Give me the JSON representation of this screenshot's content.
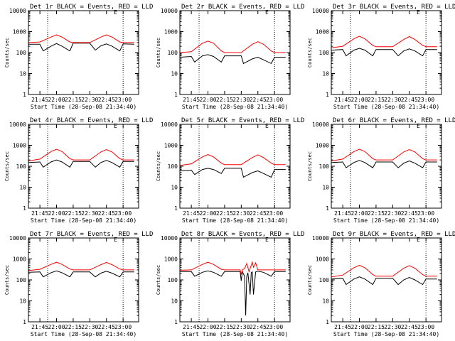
{
  "colors": {
    "events": "#000000",
    "lld": "#ff0000",
    "axes": "#000000",
    "background": "#ffffff"
  },
  "chart_data": [
    {
      "type": "line",
      "title": "Det 1r BLACK = Events, RED = LLD",
      "corner_mark": "E",
      "xlabel": "Start Time (28-Sep-08 21:34:40)",
      "ylabel": "Counts/sec",
      "y_scale": "log",
      "ylim": [
        1,
        10000
      ],
      "y_ticks": [
        "1",
        "10",
        "100",
        "1000",
        "10000"
      ],
      "xlim": [
        "21:34:40",
        "23:14:00"
      ],
      "x_ticks": [
        "21:45",
        "22:00",
        "22:15",
        "22:30",
        "22:45",
        "23:00"
      ],
      "vlines": [
        "21:52",
        "23:00"
      ],
      "series": [
        {
          "name": "Events",
          "color": "#000000",
          "x": [
            "21:35",
            "21:45",
            "21:48",
            "21:55",
            "22:00",
            "22:05",
            "22:12",
            "22:15",
            "22:30",
            "22:35",
            "22:40",
            "22:45",
            "22:50",
            "22:57",
            "23:00",
            "23:10"
          ],
          "values": [
            250,
            250,
            120,
            200,
            270,
            200,
            120,
            280,
            280,
            130,
            210,
            260,
            200,
            120,
            260,
            250
          ]
        },
        {
          "name": "LLD",
          "color": "#ff0000",
          "x": [
            "21:35",
            "21:45",
            "21:55",
            "22:00",
            "22:05",
            "22:12",
            "22:15",
            "22:30",
            "22:40",
            "22:45",
            "22:50",
            "22:57",
            "23:00",
            "23:10"
          ],
          "values": [
            300,
            320,
            550,
            700,
            550,
            320,
            300,
            300,
            550,
            700,
            550,
            320,
            300,
            300
          ]
        }
      ]
    },
    {
      "type": "line",
      "title": "Det 2r BLACK = Events, RED = LLD",
      "corner_mark": "E",
      "xlabel": "Start Time (28-Sep-08 21:34:40)",
      "ylabel": "Counts/sec",
      "y_scale": "log",
      "ylim": [
        1,
        10000
      ],
      "y_ticks": [
        "1",
        "10",
        "100",
        "1000",
        "10000"
      ],
      "xlim": [
        "21:34:40",
        "23:14:00"
      ],
      "x_ticks": [
        "21:45",
        "22:00",
        "22:15",
        "22:30",
        "22:45",
        "23:00"
      ],
      "vlines": [
        "21:52",
        "23:00"
      ],
      "series": [
        {
          "name": "Events",
          "color": "#000000",
          "x": [
            "21:35",
            "21:45",
            "21:48",
            "21:55",
            "22:00",
            "22:05",
            "22:12",
            "22:15",
            "22:30",
            "22:32",
            "22:40",
            "22:45",
            "22:50",
            "22:57",
            "23:00",
            "23:10"
          ],
          "values": [
            60,
            65,
            35,
            70,
            80,
            65,
            35,
            70,
            70,
            30,
            50,
            60,
            45,
            30,
            60,
            60
          ]
        },
        {
          "name": "LLD",
          "color": "#ff0000",
          "x": [
            "21:35",
            "21:45",
            "21:55",
            "22:00",
            "22:05",
            "22:12",
            "22:15",
            "22:30",
            "22:40",
            "22:45",
            "22:50",
            "22:57",
            "23:00",
            "23:10"
          ],
          "values": [
            100,
            110,
            280,
            350,
            280,
            120,
            100,
            100,
            250,
            330,
            250,
            120,
            100,
            100
          ]
        }
      ]
    },
    {
      "type": "line",
      "title": "Det 3r BLACK = Events, RED = LLD",
      "corner_mark": "E",
      "xlabel": "Start Time (28-Sep-08 21:34:40)",
      "ylabel": "Counts/sec",
      "y_scale": "log",
      "ylim": [
        1,
        10000
      ],
      "y_ticks": [
        "1",
        "10",
        "100",
        "1000",
        "10000"
      ],
      "xlim": [
        "21:34:40",
        "23:14:00"
      ],
      "x_ticks": [
        "21:45",
        "22:00",
        "22:15",
        "22:30",
        "22:45",
        "23:00"
      ],
      "vlines": [
        "21:52",
        "23:00"
      ],
      "series": [
        {
          "name": "Events",
          "color": "#000000",
          "x": [
            "21:35",
            "21:45",
            "21:48",
            "21:55",
            "22:00",
            "22:05",
            "22:12",
            "22:15",
            "22:30",
            "22:35",
            "22:40",
            "22:45",
            "22:50",
            "22:57",
            "23:00",
            "23:10"
          ],
          "values": [
            130,
            140,
            70,
            130,
            160,
            130,
            70,
            140,
            140,
            70,
            120,
            150,
            120,
            70,
            140,
            140
          ]
        },
        {
          "name": "LLD",
          "color": "#ff0000",
          "x": [
            "21:35",
            "21:45",
            "21:55",
            "22:00",
            "22:05",
            "22:12",
            "22:15",
            "22:30",
            "22:40",
            "22:45",
            "22:50",
            "22:57",
            "23:00",
            "23:10"
          ],
          "values": [
            170,
            200,
            450,
            600,
            450,
            220,
            190,
            190,
            420,
            580,
            420,
            220,
            190,
            190
          ]
        }
      ]
    },
    {
      "type": "line",
      "title": "Det 4r BLACK = Events, RED = LLD",
      "corner_mark": "E",
      "xlabel": "Start Time (28-Sep-08 21:34:40)",
      "ylabel": "Counts/sec",
      "y_scale": "log",
      "ylim": [
        1,
        10000
      ],
      "y_ticks": [
        "1",
        "10",
        "100",
        "1000",
        "10000"
      ],
      "xlim": [
        "21:34:40",
        "23:14:00"
      ],
      "x_ticks": [
        "21:45",
        "22:00",
        "22:15",
        "22:30",
        "22:45",
        "23:00"
      ],
      "vlines": [
        "21:52",
        "23:00"
      ],
      "series": [
        {
          "name": "Events",
          "color": "#000000",
          "x": [
            "21:35",
            "21:45",
            "21:48",
            "21:55",
            "22:00",
            "22:05",
            "22:12",
            "22:15",
            "22:30",
            "22:35",
            "22:40",
            "22:45",
            "22:50",
            "22:57",
            "23:00",
            "23:10"
          ],
          "values": [
            150,
            160,
            90,
            160,
            200,
            160,
            90,
            170,
            170,
            90,
            150,
            190,
            150,
            90,
            170,
            170
          ]
        },
        {
          "name": "LLD",
          "color": "#ff0000",
          "x": [
            "21:35",
            "21:45",
            "21:55",
            "22:00",
            "22:05",
            "22:12",
            "22:15",
            "22:30",
            "22:40",
            "22:45",
            "22:50",
            "22:57",
            "23:00",
            "23:10"
          ],
          "values": [
            180,
            220,
            500,
            650,
            500,
            230,
            200,
            200,
            480,
            620,
            480,
            230,
            200,
            200
          ]
        }
      ]
    },
    {
      "type": "line",
      "title": "Det 5r BLACK = Events, RED = LLD",
      "corner_mark": "E",
      "xlabel": "Start Time (28-Sep-08 21:34:40)",
      "ylabel": "Counts/sec",
      "y_scale": "log",
      "ylim": [
        1,
        10000
      ],
      "y_ticks": [
        "1",
        "10",
        "100",
        "1000",
        "10000"
      ],
      "xlim": [
        "21:34:40",
        "23:14:00"
      ],
      "x_ticks": [
        "21:45",
        "22:00",
        "22:15",
        "22:30",
        "22:45",
        "23:00"
      ],
      "vlines": [
        "21:52",
        "23:00"
      ],
      "series": [
        {
          "name": "Events",
          "color": "#000000",
          "x": [
            "21:35",
            "21:45",
            "21:48",
            "21:55",
            "22:00",
            "22:05",
            "22:12",
            "22:15",
            "22:30",
            "22:32",
            "22:40",
            "22:45",
            "22:50",
            "22:57",
            "23:00",
            "23:10"
          ],
          "values": [
            60,
            65,
            40,
            70,
            80,
            70,
            45,
            80,
            80,
            30,
            50,
            60,
            45,
            30,
            70,
            70
          ]
        },
        {
          "name": "LLD",
          "color": "#ff0000",
          "x": [
            "21:35",
            "21:45",
            "21:55",
            "22:00",
            "22:05",
            "22:12",
            "22:15",
            "22:30",
            "22:40",
            "22:45",
            "22:50",
            "22:57",
            "23:00",
            "23:10"
          ],
          "values": [
            110,
            130,
            280,
            360,
            280,
            140,
            120,
            120,
            260,
            350,
            260,
            140,
            120,
            120
          ]
        }
      ]
    },
    {
      "type": "line",
      "title": "Det 6r BLACK = Events, RED = LLD",
      "corner_mark": "E",
      "xlabel": "Start Time (28-Sep-08 21:34:40)",
      "ylabel": "Counts/sec",
      "y_scale": "log",
      "ylim": [
        1,
        10000
      ],
      "y_ticks": [
        "1",
        "10",
        "100",
        "1000",
        "10000"
      ],
      "xlim": [
        "21:34:40",
        "23:14:00"
      ],
      "x_ticks": [
        "21:45",
        "22:00",
        "22:15",
        "22:30",
        "22:45",
        "23:00"
      ],
      "vlines": [
        "21:52",
        "23:00"
      ],
      "series": [
        {
          "name": "Events",
          "color": "#000000",
          "x": [
            "21:35",
            "21:45",
            "21:48",
            "21:55",
            "22:00",
            "22:05",
            "22:12",
            "22:15",
            "22:30",
            "22:35",
            "22:40",
            "22:45",
            "22:50",
            "22:57",
            "23:00",
            "23:10"
          ],
          "values": [
            150,
            160,
            85,
            150,
            190,
            150,
            85,
            160,
            160,
            85,
            140,
            180,
            140,
            85,
            160,
            160
          ]
        },
        {
          "name": "LLD",
          "color": "#ff0000",
          "x": [
            "21:35",
            "21:45",
            "21:55",
            "22:00",
            "22:05",
            "22:12",
            "22:15",
            "22:30",
            "22:40",
            "22:45",
            "22:50",
            "22:57",
            "23:00",
            "23:10"
          ],
          "values": [
            180,
            220,
            500,
            650,
            500,
            230,
            200,
            200,
            480,
            620,
            480,
            230,
            200,
            200
          ]
        }
      ]
    },
    {
      "type": "line",
      "title": "Det 7r BLACK = Events, RED = LLD",
      "corner_mark": "E",
      "xlabel": "Start Time (28-Sep-08 21:34:40)",
      "ylabel": "Counts/sec",
      "y_scale": "log",
      "ylim": [
        1,
        10000
      ],
      "y_ticks": [
        "1",
        "10",
        "100",
        "1000",
        "10000"
      ],
      "xlim": [
        "21:34:40",
        "23:14:00"
      ],
      "x_ticks": [
        "21:45",
        "22:00",
        "22:15",
        "22:30",
        "22:45",
        "23:00"
      ],
      "vlines": [
        "21:52",
        "23:00"
      ],
      "series": [
        {
          "name": "Events",
          "color": "#000000",
          "x": [
            "21:35",
            "21:45",
            "21:48",
            "21:55",
            "22:00",
            "22:05",
            "22:12",
            "22:15",
            "22:30",
            "22:35",
            "22:40",
            "22:45",
            "22:50",
            "22:57",
            "23:00",
            "23:10"
          ],
          "values": [
            230,
            240,
            140,
            220,
            270,
            220,
            140,
            240,
            240,
            140,
            210,
            260,
            210,
            140,
            240,
            240
          ]
        },
        {
          "name": "LLD",
          "color": "#ff0000",
          "x": [
            "21:35",
            "21:45",
            "21:55",
            "22:00",
            "22:05",
            "22:12",
            "22:15",
            "22:30",
            "22:40",
            "22:45",
            "22:50",
            "22:57",
            "23:00",
            "23:10"
          ],
          "values": [
            280,
            320,
            550,
            700,
            550,
            330,
            300,
            300,
            530,
            680,
            530,
            330,
            300,
            300
          ]
        }
      ]
    },
    {
      "type": "line",
      "title": "Det 8r BLACK = Events, RED = LLD",
      "corner_mark": "E",
      "xlabel": "Start Time (28-Sep-08 21:34:40)",
      "ylabel": "Counts/sec",
      "y_scale": "log",
      "ylim": [
        1,
        10000
      ],
      "y_ticks": [
        "1",
        "10",
        "100",
        "1000",
        "10000"
      ],
      "xlim": [
        "21:34:40",
        "23:14:00"
      ],
      "x_ticks": [
        "21:45",
        "22:00",
        "22:15",
        "22:30",
        "22:45",
        "23:00"
      ],
      "vlines": [
        "21:52",
        "23:00"
      ],
      "series": [
        {
          "name": "Events",
          "color": "#000000",
          "x": [
            "21:35",
            "21:45",
            "21:48",
            "21:55",
            "22:00",
            "22:05",
            "22:12",
            "22:15",
            "22:29",
            "22:30",
            "22:31",
            "22:33",
            "22:34",
            "22:35",
            "22:36",
            "22:38",
            "22:39",
            "22:40",
            "22:41",
            "22:43",
            "22:44",
            "22:45",
            "22:50",
            "22:57",
            "23:00",
            "23:10"
          ],
          "values": [
            250,
            250,
            150,
            230,
            270,
            230,
            150,
            250,
            250,
            90,
            250,
            150,
            2,
            150,
            220,
            20,
            220,
            240,
            20,
            240,
            250,
            260,
            230,
            150,
            250,
            250
          ]
        },
        {
          "name": "LLD",
          "color": "#ff0000",
          "x": [
            "21:35",
            "21:45",
            "21:55",
            "22:00",
            "22:05",
            "22:12",
            "22:15",
            "22:29",
            "22:30",
            "22:31",
            "22:33",
            "22:35",
            "22:37",
            "22:40",
            "22:41",
            "22:43",
            "22:45",
            "22:50",
            "22:57",
            "23:00",
            "23:10"
          ],
          "values": [
            290,
            300,
            550,
            700,
            550,
            320,
            300,
            300,
            180,
            300,
            350,
            600,
            250,
            700,
            400,
            650,
            300,
            300,
            300,
            300,
            300
          ]
        }
      ]
    },
    {
      "type": "line",
      "title": "Det 9r BLACK = Events, RED = LLD",
      "corner_mark": "E",
      "xlabel": "Start Time (28-Sep-08 21:34:40)",
      "ylabel": "Counts/sec",
      "y_scale": "log",
      "ylim": [
        1,
        10000
      ],
      "y_ticks": [
        "1",
        "10",
        "100",
        "1000",
        "10000"
      ],
      "xlim": [
        "21:34:40",
        "23:14:00"
      ],
      "x_ticks": [
        "21:45",
        "22:00",
        "22:15",
        "22:30",
        "22:45",
        "23:00"
      ],
      "vlines": [
        "21:52",
        "23:00"
      ],
      "series": [
        {
          "name": "Events",
          "color": "#000000",
          "x": [
            "21:35",
            "21:45",
            "21:48",
            "21:55",
            "22:00",
            "22:05",
            "22:12",
            "22:15",
            "22:30",
            "22:35",
            "22:40",
            "22:45",
            "22:50",
            "22:57",
            "23:00",
            "23:10"
          ],
          "values": [
            110,
            120,
            60,
            110,
            140,
            110,
            60,
            120,
            120,
            60,
            100,
            130,
            100,
            60,
            110,
            110
          ]
        },
        {
          "name": "LLD",
          "color": "#ff0000",
          "x": [
            "21:35",
            "21:45",
            "21:55",
            "22:00",
            "22:05",
            "22:12",
            "22:15",
            "22:30",
            "22:40",
            "22:45",
            "22:50",
            "22:57",
            "23:00",
            "23:10"
          ],
          "values": [
            140,
            170,
            380,
            500,
            380,
            180,
            150,
            150,
            360,
            480,
            360,
            180,
            150,
            150
          ]
        }
      ]
    }
  ]
}
